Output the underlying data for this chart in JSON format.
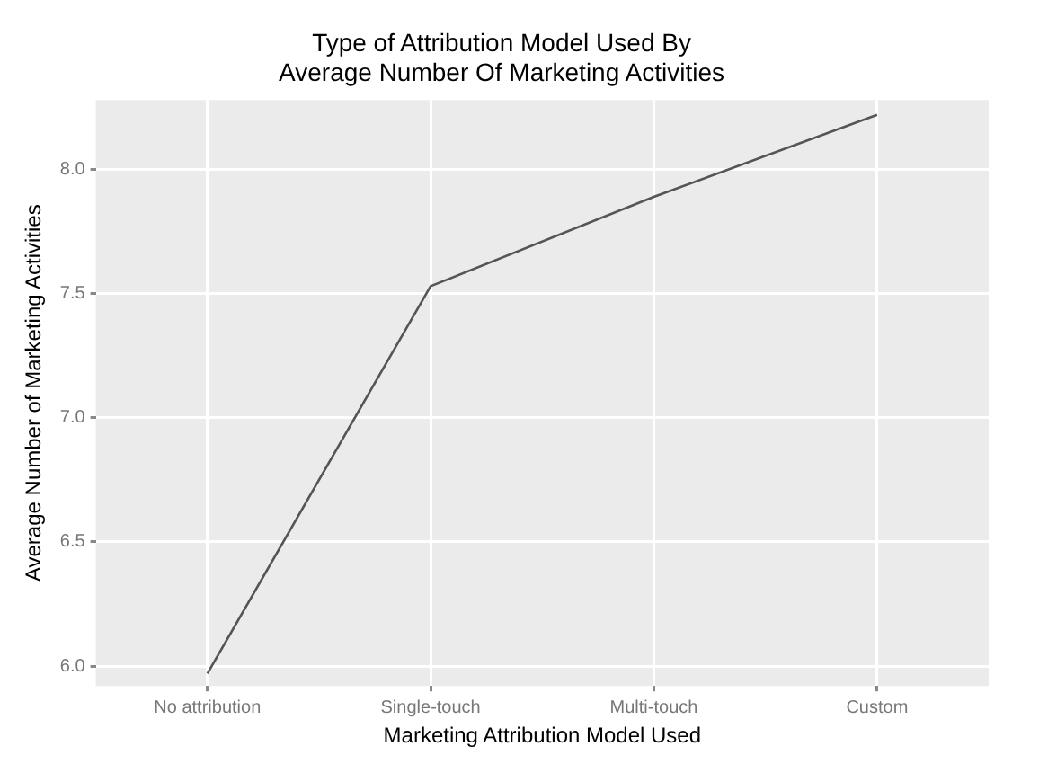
{
  "chart_data": {
    "type": "line",
    "title": "Type of Attribution Model Used By\nAverage Number Of Marketing Activities",
    "xlabel": "Marketing Attribution Model Used",
    "ylabel": "Average Number of Marketing Activities",
    "categories": [
      "No attribution",
      "Single-touch",
      "Multi-touch",
      "Custom"
    ],
    "series": [
      {
        "color": "#555555",
        "values": [
          5.97,
          7.53,
          7.89,
          8.22
        ]
      }
    ],
    "ylim": [
      5.92,
      8.28
    ],
    "yticks": [
      {
        "value": 6,
        "label": "6.0"
      },
      6.5,
      {
        "value": 7,
        "label": "7.0"
      },
      7.5,
      {
        "value": 8,
        "label": "8.0"
      }
    ],
    "grid": true,
    "legend": false,
    "marker": "none"
  }
}
